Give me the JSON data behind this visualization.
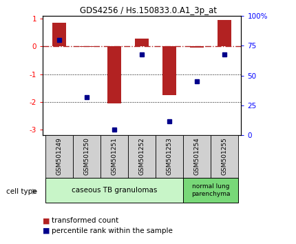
{
  "title": "GDS4256 / Hs.150833.0.A1_3p_at",
  "samples": [
    "GSM501249",
    "GSM501250",
    "GSM501251",
    "GSM501252",
    "GSM501253",
    "GSM501254",
    "GSM501255"
  ],
  "transformed_counts": [
    0.85,
    -0.02,
    -2.05,
    0.27,
    -1.75,
    -0.05,
    0.95
  ],
  "percentile_ranks": [
    80,
    32,
    5,
    68,
    12,
    45,
    68
  ],
  "ylim_left": [
    -3.2,
    1.1
  ],
  "ylim_right": [
    0,
    100
  ],
  "right_ticks": [
    0,
    25,
    50,
    75,
    100
  ],
  "right_tick_labels": [
    "0",
    "25",
    "50",
    "75",
    "100%"
  ],
  "left_ticks": [
    -3,
    -2,
    -1,
    0,
    1
  ],
  "bar_color": "#b22222",
  "dot_color": "#00008b",
  "group1_indices": [
    0,
    1,
    2,
    3,
    4
  ],
  "group2_indices": [
    5,
    6
  ],
  "group1_label": "caseous TB granulomas",
  "group2_label": "normal lung\nparenchyma",
  "group1_bg": "#c8f5c8",
  "group2_bg": "#78d878",
  "sample_box_bg": "#d0d0d0",
  "cell_type_label": "cell type",
  "legend_bar_label": "transformed count",
  "legend_dot_label": "percentile rank within the sample",
  "background_color": "#ffffff"
}
